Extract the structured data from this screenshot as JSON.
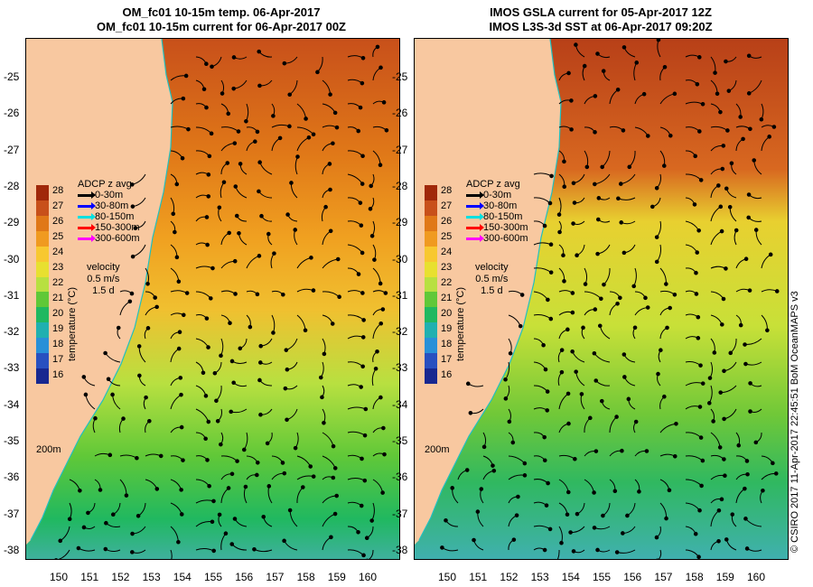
{
  "left_panel": {
    "title_line1": "OM_fc01 10-15m temp. 06-Apr-2017",
    "title_line2": "OM_fc01 10-15m current for 06-Apr-2017 00Z"
  },
  "right_panel": {
    "title_line1": "IMOS GSLA current for 05-Apr-2017 12Z",
    "title_line2": "IMOS L3S-3d SST at 06-Apr-2017 09:20Z"
  },
  "lat_ticks": [
    "-25",
    "-26",
    "-27",
    "-28",
    "-29",
    "-30",
    "-31",
    "-32",
    "-33",
    "-34",
    "-35",
    "-36",
    "-37",
    "-38"
  ],
  "lon_ticks": [
    "150",
    "151",
    "152",
    "153",
    "154",
    "155",
    "156",
    "157",
    "158",
    "159",
    "160"
  ],
  "colorbar": {
    "ticks": [
      "28",
      "27",
      "26",
      "25",
      "24",
      "23",
      "22",
      "21",
      "20",
      "19",
      "18",
      "17",
      "16"
    ],
    "label": "temperature (°C)",
    "colors": [
      "#a0280a",
      "#c8501a",
      "#e07818",
      "#f09a20",
      "#f8c830",
      "#e8e030",
      "#b8e040",
      "#60c838",
      "#20b860",
      "#20b0b0",
      "#2890d8",
      "#2850c0",
      "#182890"
    ]
  },
  "legend": {
    "title": "ADCP z avg",
    "items": [
      {
        "label": "0-30m",
        "color": "#000000"
      },
      {
        "label": "30-80m",
        "color": "#0000ff"
      },
      {
        "label": "80-150m",
        "color": "#00e0e0"
      },
      {
        "label": "150-300m",
        "color": "#ff0000"
      },
      {
        "label": "300-600m",
        "color": "#ff00ff"
      }
    ]
  },
  "velocity": {
    "label": "velocity",
    "speed": "0.5 m/s",
    "duration": "1.5 d"
  },
  "isobath_label": "200m",
  "copyright": "© CSIRO 2017  11-Apr-2017 22:45:51 BoM OceanMAPS v3"
}
